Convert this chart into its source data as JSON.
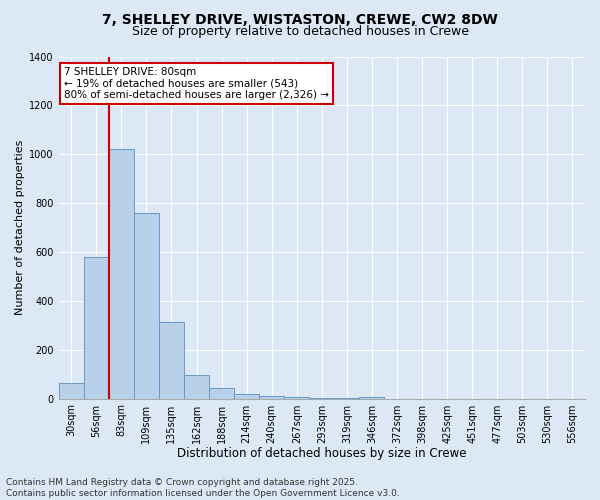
{
  "title_line1": "7, SHELLEY DRIVE, WISTASTON, CREWE, CW2 8DW",
  "title_line2": "Size of property relative to detached houses in Crewe",
  "xlabel": "Distribution of detached houses by size in Crewe",
  "ylabel": "Number of detached properties",
  "categories": [
    "30sqm",
    "56sqm",
    "83sqm",
    "109sqm",
    "135sqm",
    "162sqm",
    "188sqm",
    "214sqm",
    "240sqm",
    "267sqm",
    "293sqm",
    "319sqm",
    "346sqm",
    "372sqm",
    "398sqm",
    "425sqm",
    "451sqm",
    "477sqm",
    "503sqm",
    "530sqm",
    "556sqm"
  ],
  "values": [
    65,
    580,
    1020,
    760,
    315,
    95,
    42,
    20,
    10,
    5,
    3,
    2,
    8,
    0,
    0,
    0,
    0,
    0,
    0,
    0,
    0
  ],
  "bar_color": "#b8d0e8",
  "bar_edge_color": "#6699cc",
  "vline_position": 1.5,
  "vline_color": "#cc0000",
  "annotation_text": "7 SHELLEY DRIVE: 80sqm\n← 19% of detached houses are smaller (543)\n80% of semi-detached houses are larger (2,326) →",
  "annotation_box_facecolor": "#ffffff",
  "annotation_box_edgecolor": "#cc0000",
  "ylim": [
    0,
    1400
  ],
  "yticks": [
    0,
    200,
    400,
    600,
    800,
    1000,
    1200,
    1400
  ],
  "fig_facecolor": "#dce8f5",
  "plot_facecolor": "#dce8f5",
  "grid_color": "#ffffff",
  "title_fontsize": 10,
  "subtitle_fontsize": 9,
  "ylabel_fontsize": 8,
  "xlabel_fontsize": 8.5,
  "tick_fontsize": 7,
  "annot_fontsize": 7.5,
  "footer_fontsize": 6.5,
  "footer": "Contains HM Land Registry data © Crown copyright and database right 2025.\nContains public sector information licensed under the Open Government Licence v3.0."
}
